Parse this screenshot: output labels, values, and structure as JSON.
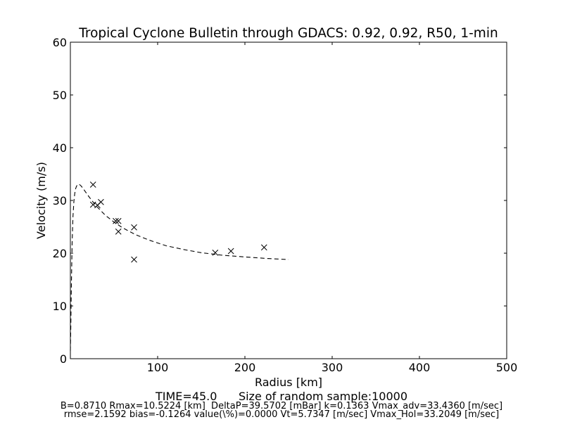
{
  "chart_data": {
    "type": "scatter",
    "title": "Tropical Cyclone Bulletin through GDACS: 0.92, 0.92, R50, 1-min",
    "xlabel": "Radius [km]",
    "ylabel": "Velocity (m/s)",
    "xlim": [
      0,
      500
    ],
    "ylim": [
      0,
      60
    ],
    "xticks": [
      100,
      200,
      300,
      400,
      500
    ],
    "yticks": [
      0,
      10,
      20,
      30,
      40,
      50,
      60
    ],
    "grid": false,
    "series": [
      {
        "style": "markers-x",
        "color": "#000000",
        "x": [
          26,
          26,
          31,
          35,
          52,
          55,
          55,
          73,
          73,
          166,
          184,
          222
        ],
        "y": [
          33.0,
          29.2,
          29.1,
          29.7,
          26.1,
          26.1,
          24.1,
          24.9,
          18.8,
          20.1,
          20.4,
          21.1
        ]
      },
      {
        "style": "dashed-line",
        "color": "#000000",
        "x": [
          0,
          0.5,
          1,
          1.5,
          2,
          3,
          4,
          5,
          6,
          7,
          8,
          9,
          10.5,
          12,
          14,
          17,
          20,
          25,
          30,
          40,
          50,
          60,
          75,
          90,
          110,
          130,
          150,
          175,
          200,
          225,
          250
        ],
        "y": [
          1.5,
          6.0,
          12.0,
          17.5,
          22.0,
          27.0,
          29.8,
          31.3,
          32.2,
          32.7,
          32.95,
          33.1,
          33.0,
          32.8,
          32.4,
          31.7,
          31.0,
          29.9,
          28.9,
          27.2,
          25.9,
          24.8,
          23.5,
          22.5,
          21.4,
          20.7,
          20.1,
          19.6,
          19.3,
          19.0,
          18.8
        ]
      }
    ]
  },
  "footer": {
    "time_line": "TIME=45.0      Size of random sample:10000",
    "params_line_1": "B=0.8710 Rmax=10.5224 [km]  DeltaP=39.5702 [mBar] k=0.1363 Vmax_adv=33.4360 [m/sec]",
    "params_line_2": "rmse=2.1592 bias=-0.1264 value(\\%)=0.0000 Vt=5.7347 [m/sec] Vmax_Hol=33.2049 [m/sec]"
  }
}
